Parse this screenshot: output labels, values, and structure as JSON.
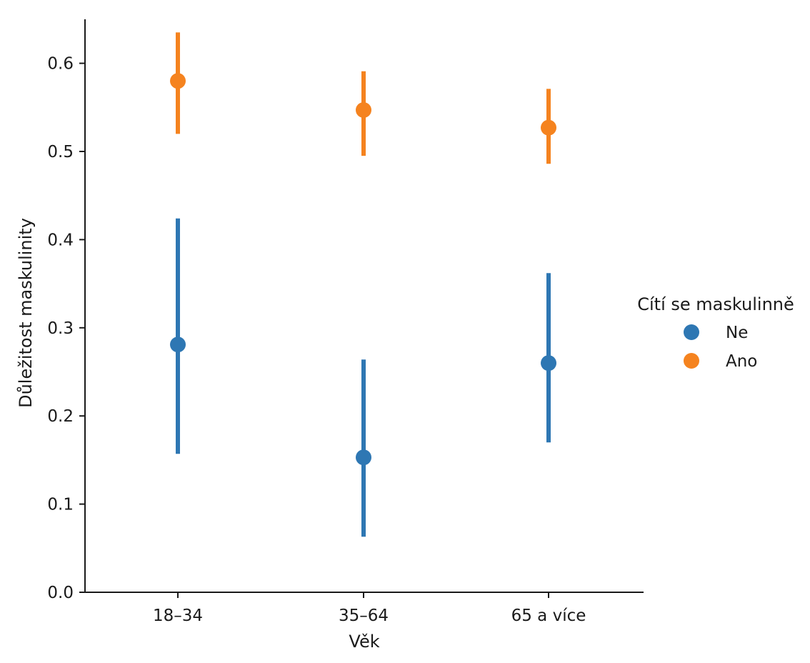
{
  "chart_data": {
    "type": "pointplot",
    "xlabel": "Věk",
    "ylabel": "Důležitost maskulinity",
    "categories": [
      "18–34",
      "35–64",
      "65 a více"
    ],
    "ylim": [
      0,
      0.65
    ],
    "yticks": [
      "0.0",
      "0.1",
      "0.2",
      "0.3",
      "0.4",
      "0.5",
      "0.6"
    ],
    "grid": false,
    "legend": {
      "title": "Cítí se maskulinně",
      "placement": "right"
    },
    "series": [
      {
        "name": "Ne",
        "color": "#2e77b3",
        "values": [
          0.281,
          0.153,
          0.26
        ],
        "ci_low": [
          0.157,
          0.063,
          0.17
        ],
        "ci_high": [
          0.424,
          0.264,
          0.362
        ]
      },
      {
        "name": "Ano",
        "color": "#f5831f",
        "values": [
          0.58,
          0.547,
          0.527
        ],
        "ci_low": [
          0.52,
          0.495,
          0.486
        ],
        "ci_high": [
          0.635,
          0.591,
          0.571
        ]
      }
    ]
  }
}
